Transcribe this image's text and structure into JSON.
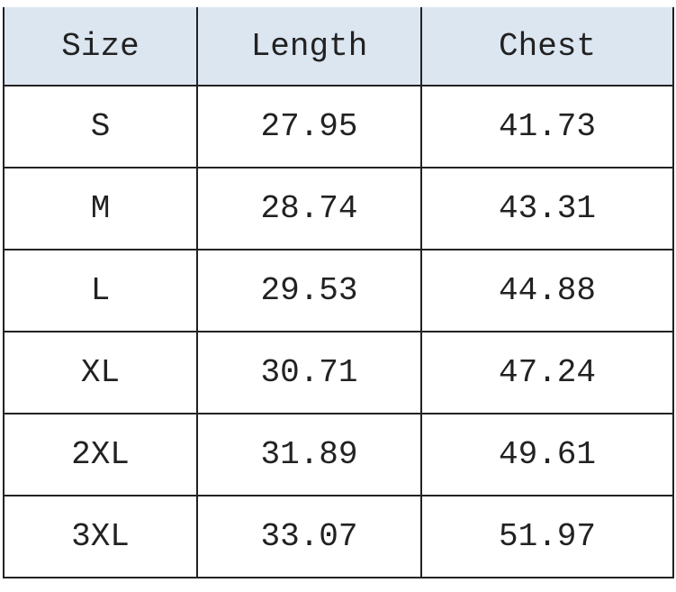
{
  "table": {
    "headers": [
      "Size",
      "Length",
      "Chest"
    ],
    "header_bg": "#dce6f1",
    "rows": [
      [
        "S",
        "27.95",
        "41.73"
      ],
      [
        "M",
        "28.74",
        "43.31"
      ],
      [
        "L",
        "29.53",
        "44.88"
      ],
      [
        "XL",
        "30.71",
        "47.24"
      ],
      [
        "2XL",
        "31.89",
        "49.61"
      ],
      [
        "3XL",
        "33.07",
        "51.97"
      ]
    ]
  }
}
